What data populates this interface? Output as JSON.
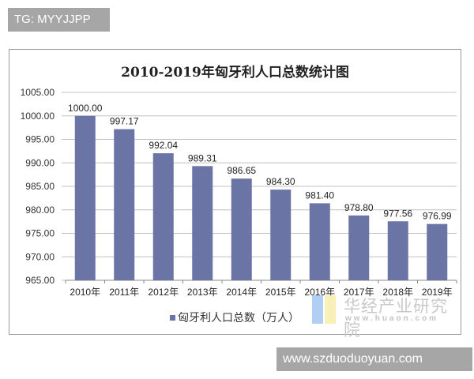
{
  "overlays": {
    "top_tag": "TG: MYYJJPP",
    "bottom_tag": "www.szduoduoyuan.com"
  },
  "watermark": {
    "name": "华经产业研究院",
    "url": "www.huaon.com"
  },
  "colors": {
    "bar": "#6a74a5",
    "grid": "#c0c0c0",
    "tag_bg": "#a6a6a6"
  },
  "chart_data": {
    "type": "bar",
    "title": "2010-2019年匈牙利人口总数统计图",
    "xlabel": "",
    "ylabel": "",
    "categories": [
      "2010年",
      "2011年",
      "2012年",
      "2013年",
      "2014年",
      "2015年",
      "2016年",
      "2017年",
      "2018年",
      "2019年"
    ],
    "series": [
      {
        "name": "匈牙利人口总数（万人）",
        "values": [
          1000.0,
          997.17,
          992.04,
          989.31,
          986.65,
          984.3,
          981.4,
          978.8,
          977.56,
          976.99
        ]
      }
    ],
    "value_labels": [
      "1000.00",
      "997.17",
      "992.04",
      "989.31",
      "986.65",
      "984.30",
      "981.40",
      "978.80",
      "977.56",
      "976.99"
    ],
    "ylim": [
      965,
      1005
    ],
    "yticks": [
      "965.00",
      "970.00",
      "975.00",
      "980.00",
      "985.00",
      "990.00",
      "995.00",
      "1000.00",
      "1005.00"
    ],
    "grid": true,
    "legend_position": "bottom"
  }
}
